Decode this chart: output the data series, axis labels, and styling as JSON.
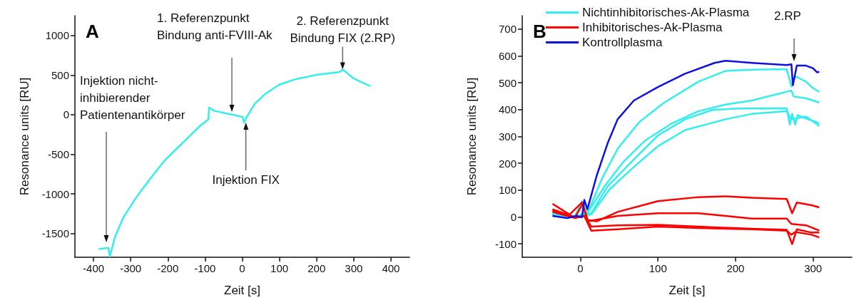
{
  "chart_data": [
    {
      "type": "line",
      "title": "A",
      "xlabel": "Zeit [s]",
      "ylabel": "Resonance units [RU]",
      "xlim": [
        -450,
        450
      ],
      "xticks": [
        -400,
        -300,
        -200,
        -100,
        0,
        100,
        200,
        300,
        400
      ],
      "ylim": [
        -1800,
        1250
      ],
      "yticks": [
        -1500,
        -1000,
        -500,
        0,
        500,
        1000
      ],
      "series": [
        {
          "color": "#33eeee",
          "x": [
            -386,
            -375,
            -360,
            -356,
            -342,
            -320,
            -283,
            -246,
            -209,
            -172,
            -135,
            -113,
            -91,
            -89,
            -76,
            -47,
            -17,
            1,
            5,
            12,
            34,
            64,
            100,
            145,
            196,
            263,
            270,
            281,
            299,
            321,
            345
          ],
          "values": [
            -1700,
            -1690,
            -1680,
            -1790,
            -1540,
            -1300,
            -1030,
            -800,
            -580,
            -410,
            -240,
            -140,
            -60,
            90,
            50,
            20,
            -10,
            -30,
            -100,
            -30,
            140,
            270,
            380,
            450,
            500,
            540,
            570,
            530,
            460,
            410,
            360
          ]
        }
      ],
      "annotations": [
        "Injektion nicht-\ninhibierender\nPatientenantikörper",
        "1. Referenzpunkt\nBindung anti-FVIII-Ak",
        {
          "text": "Injektion FIX",
          "x": 10,
          "y": -100
        },
        {
          "text": "2. Referenzpunkt\nBindung FIX (2.RP)",
          "x": 270,
          "y": 570
        }
      ]
    },
    {
      "type": "line",
      "title": "B",
      "xlabel": "Zeit [s]",
      "ylabel": "Resonance units [RU]",
      "xlim": [
        -75,
        350
      ],
      "xticks": [
        0,
        100,
        200,
        300
      ],
      "ylim": [
        -150,
        750
      ],
      "yticks": [
        -100,
        0,
        100,
        200,
        300,
        400,
        500,
        600,
        700
      ],
      "legend": "top left",
      "series": [
        {
          "name": "Nichtinhibitorisches-Ak-Plasma",
          "color": "#33eeee",
          "x": [
            -36,
            -7,
            2,
            10,
            28,
            48,
            76,
            107,
            152,
            187,
            221,
            266,
            272,
            277,
            291,
            298,
            308
          ],
          "values": [
            14,
            4,
            59,
            19,
            144,
            254,
            354,
            424,
            504,
            544,
            549,
            551,
            486,
            524,
            504,
            484,
            466
          ]
        },
        {
          "color": "#33eeee",
          "x": [
            -36,
            -7,
            10,
            31,
            55,
            83,
            118,
            152,
            187,
            221,
            272,
            275,
            291,
            308
          ],
          "values": [
            9,
            2,
            19,
            114,
            204,
            284,
            349,
            394,
            419,
            434,
            471,
            449,
            442,
            426
          ]
        },
        {
          "color": "#33eeee",
          "x": [
            -36,
            -7,
            14,
            35,
            62,
            100,
            135,
            170,
            204,
            266,
            270,
            273,
            277,
            280,
            308
          ],
          "values": [
            9,
            2,
            14,
            114,
            194,
            304,
            364,
            399,
            404,
            405,
            344,
            384,
            344,
            379,
            349
          ]
        },
        {
          "color": "#33eeee",
          "x": [
            -36,
            -7,
            14,
            38,
            66,
            100,
            135,
            187,
            221,
            266,
            272,
            291,
            308
          ],
          "values": [
            9,
            2,
            9,
            104,
            179,
            264,
            324,
            364,
            384,
            394,
            364,
            374,
            339
          ]
        },
        {
          "name": "Inhibitorisches-Ak-Plasma",
          "color": "#ff0000",
          "x": [
            -36,
            -14,
            2,
            9,
            21,
            48,
            100,
            152,
            187,
            221,
            266,
            273,
            279,
            298,
            308
          ],
          "values": [
            49,
            9,
            54,
            -11,
            -16,
            19,
            59,
            74,
            77,
            72,
            67,
            14,
            54,
            44,
            36
          ]
        },
        {
          "color": "#ff0000",
          "x": [
            -36,
            -7,
            3,
            10,
            48,
            100,
            152,
            187,
            221,
            266,
            272,
            291,
            308
          ],
          "values": [
            29,
            -1,
            49,
            -16,
            4,
            14,
            14,
            4,
            -6,
            -6,
            -26,
            -31,
            -51
          ]
        },
        {
          "color": "#ff0000",
          "x": [
            -36,
            -7,
            5,
            14,
            48,
            100,
            152,
            221,
            266,
            273,
            279,
            298,
            308
          ],
          "values": [
            24,
            -1,
            4,
            -36,
            -31,
            -29,
            -36,
            -44,
            -48,
            -101,
            -46,
            -58,
            -58
          ]
        },
        {
          "color": "#ff0000",
          "x": [
            -36,
            -7,
            5,
            14,
            48,
            100,
            152,
            221,
            266,
            272,
            277,
            298,
            308
          ],
          "values": [
            19,
            -4,
            4,
            -51,
            -46,
            -36,
            -41,
            -46,
            -51,
            -66,
            -56,
            -66,
            -76
          ]
        },
        {
          "name": "Kontrollplasma",
          "color": "#1010e0",
          "x": [
            -36,
            -17,
            -5,
            2,
            5,
            9,
            21,
            35,
            48,
            69,
            100,
            135,
            173,
            187,
            221,
            266,
            272,
            274,
            279,
            291,
            300,
            305,
            308
          ],
          "values": [
            4,
            -4,
            4,
            -1,
            64,
            29,
            154,
            274,
            364,
            434,
            484,
            534,
            574,
            582,
            574,
            566,
            569,
            491,
            564,
            564,
            554,
            539,
            541
          ]
        }
      ],
      "annotations": [
        "2.RP"
      ]
    }
  ]
}
